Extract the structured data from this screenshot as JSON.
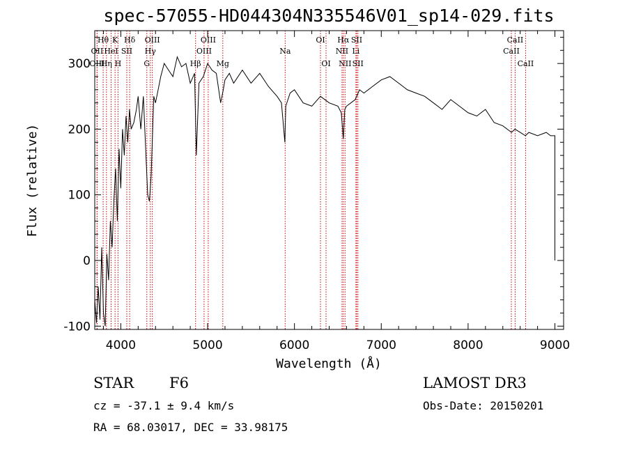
{
  "chart_data": {
    "type": "line",
    "title": "spec-57055-HD044304N335546V01_sp14-029.fits",
    "xlabel": "Wavelength (Å)",
    "ylabel": "Flux (relative)",
    "xlim": [
      3700,
      9100
    ],
    "ylim": [
      -105,
      350
    ],
    "x_ticks": [
      4000,
      5000,
      6000,
      7000,
      8000,
      9000
    ],
    "y_ticks": [
      -100,
      0,
      100,
      200,
      300
    ],
    "series": [
      {
        "x": [
          3700,
          3720,
          3740,
          3760,
          3780,
          3800,
          3820,
          3840,
          3860,
          3880,
          3900,
          3920,
          3940,
          3960,
          3980,
          4000,
          4020,
          4040,
          4060,
          4080,
          4100,
          4120,
          4150,
          4180,
          4200,
          4230,
          4260,
          4290,
          4310,
          4330,
          4350,
          4380,
          4400,
          4430,
          4460,
          4500,
          4550,
          4600,
          4650,
          4700,
          4750,
          4800,
          4850,
          4870,
          4900,
          4950,
          5000,
          5050,
          5100,
          5150,
          5180,
          5200,
          5250,
          5300,
          5400,
          5500,
          5600,
          5700,
          5800,
          5850,
          5890,
          5900,
          5950,
          6000,
          6100,
          6200,
          6300,
          6400,
          6500,
          6540,
          6563,
          6580,
          6600,
          6650,
          6700,
          6750,
          6800,
          6900,
          7000,
          7100,
          7200,
          7300,
          7400,
          7500,
          7600,
          7700,
          7800,
          7900,
          8000,
          8100,
          8200,
          8300,
          8400,
          8500,
          8540,
          8600,
          8660,
          8700,
          8800,
          8900,
          8950,
          9000,
          9000
        ],
        "values": [
          -60,
          -95,
          -40,
          -90,
          20,
          -80,
          -100,
          10,
          -30,
          60,
          20,
          90,
          140,
          60,
          170,
          110,
          200,
          160,
          220,
          180,
          230,
          200,
          210,
          230,
          250,
          200,
          250,
          160,
          100,
          90,
          130,
          250,
          240,
          260,
          280,
          300,
          290,
          280,
          310,
          295,
          300,
          270,
          285,
          160,
          270,
          280,
          300,
          290,
          285,
          240,
          260,
          275,
          285,
          270,
          290,
          270,
          285,
          265,
          250,
          240,
          180,
          235,
          255,
          260,
          240,
          235,
          250,
          240,
          235,
          225,
          185,
          230,
          235,
          240,
          245,
          260,
          255,
          265,
          275,
          280,
          270,
          260,
          255,
          250,
          240,
          230,
          245,
          235,
          225,
          220,
          230,
          210,
          205,
          195,
          200,
          195,
          190,
          195,
          190,
          195,
          190,
          190,
          0
        ]
      }
    ],
    "line_markers": [
      {
        "label": "Hθ",
        "x": 3797,
        "row": 1
      },
      {
        "label": "OII",
        "x": 3727,
        "row": 2
      },
      {
        "label": "OIII",
        "x": 3727,
        "row": 3
      },
      {
        "label": "K",
        "x": 3934,
        "row": 1
      },
      {
        "label": "HeI",
        "x": 3889,
        "row": 2
      },
      {
        "label": "Hη",
        "x": 3835,
        "row": 3
      },
      {
        "label": "Hδ",
        "x": 4102,
        "row": 1
      },
      {
        "label": "SII",
        "x": 4069,
        "row": 2
      },
      {
        "label": "H",
        "x": 3968,
        "row": 3
      },
      {
        "label": "OIII",
        "x": 4363,
        "row": 1
      },
      {
        "label": "Hγ",
        "x": 4340,
        "row": 2
      },
      {
        "label": "G",
        "x": 4300,
        "row": 3
      },
      {
        "label": "OIII",
        "x": 5007,
        "row": 1
      },
      {
        "label": "OIII",
        "x": 4959,
        "row": 2
      },
      {
        "label": "Hβ",
        "x": 4861,
        "row": 3
      },
      {
        "label": "Mg",
        "x": 5175,
        "row": 3
      },
      {
        "label": "Na",
        "x": 5893,
        "row": 2
      },
      {
        "label": "OI",
        "x": 6300,
        "row": 1
      },
      {
        "label": "OI",
        "x": 6364,
        "row": 3
      },
      {
        "label": "Hα",
        "x": 6563,
        "row": 1
      },
      {
        "label": "NII",
        "x": 6548,
        "row": 2
      },
      {
        "label": "NII",
        "x": 6583,
        "row": 3
      },
      {
        "label": "SII",
        "x": 6717,
        "row": 1
      },
      {
        "label": "Li",
        "x": 6708,
        "row": 2
      },
      {
        "label": "SII",
        "x": 6731,
        "row": 3
      },
      {
        "label": "CaII",
        "x": 8542,
        "row": 1
      },
      {
        "label": "CaII",
        "x": 8498,
        "row": 2
      },
      {
        "label": "CaII",
        "x": 8662,
        "row": 3
      }
    ]
  },
  "info": {
    "object_class": "STAR",
    "subclass": "F6",
    "survey": "LAMOST DR3",
    "cz": "cz = -37.1 ± 9.4 km/s",
    "obs_date": "Obs-Date: 20150201",
    "radec": "RA =  68.03017, DEC =  33.98175"
  },
  "colors": {
    "spectrum": "#000000",
    "marker": "#cc0000",
    "background": "#ffffff"
  }
}
